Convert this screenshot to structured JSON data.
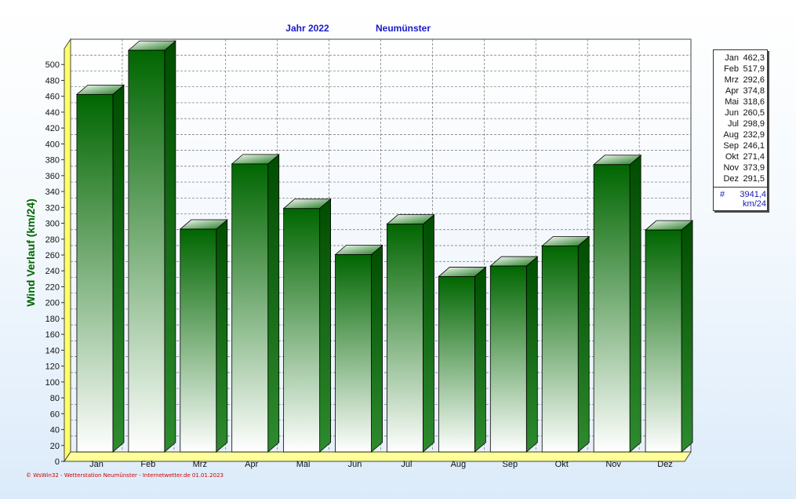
{
  "title": {
    "year_label": "Jahr  2022",
    "station": "Neumünster"
  },
  "colors": {
    "bar_dark": "#006600",
    "bar_light": "#ffffff",
    "title_blue": "#1a1ac8",
    "ylabel_green": "#006600",
    "floor_yellow": "#ffff99",
    "wall_yellow": "#ffff66",
    "grid": "#6f6f6f",
    "footer_red": "#cc0000"
  },
  "chart_data": {
    "type": "bar",
    "categories": [
      "Jan",
      "Feb",
      "Mrz",
      "Apr",
      "Mai",
      "Jun",
      "Jul",
      "Aug",
      "Sep",
      "Okt",
      "Nov",
      "Dez"
    ],
    "values": [
      462.3,
      517.9,
      292.6,
      374.8,
      318.6,
      260.5,
      298.9,
      232.9,
      246.1,
      271.4,
      373.9,
      291.5
    ],
    "ylabel": "Wind Verlauf  (km/24)",
    "ylim": [
      0,
      520
    ],
    "yticks": [
      0,
      20,
      40,
      60,
      80,
      100,
      120,
      140,
      160,
      180,
      200,
      220,
      240,
      260,
      280,
      300,
      320,
      340,
      360,
      380,
      400,
      420,
      440,
      460,
      480,
      500
    ],
    "grid": true,
    "style": "3d"
  },
  "legend": {
    "entries": [
      {
        "month": "Jan",
        "value": "462,3"
      },
      {
        "month": "Feb",
        "value": "517,9"
      },
      {
        "month": "Mrz",
        "value": "292,6"
      },
      {
        "month": "Apr",
        "value": "374,8"
      },
      {
        "month": "Mai",
        "value": "318,6"
      },
      {
        "month": "Jun",
        "value": "260,5"
      },
      {
        "month": "Jul",
        "value": "298,9"
      },
      {
        "month": "Aug",
        "value": "232,9"
      },
      {
        "month": "Sep",
        "value": "246,1"
      },
      {
        "month": "Okt",
        "value": "271,4"
      },
      {
        "month": "Nov",
        "value": "373,9"
      },
      {
        "month": "Dez",
        "value": "291,5"
      }
    ],
    "total_symbol": "#",
    "total_value": "3941,4",
    "unit": "km/24"
  },
  "footer": "© WsWin32 - Wetterstation Neumünster - Internetwetter.de  01.01.2023"
}
